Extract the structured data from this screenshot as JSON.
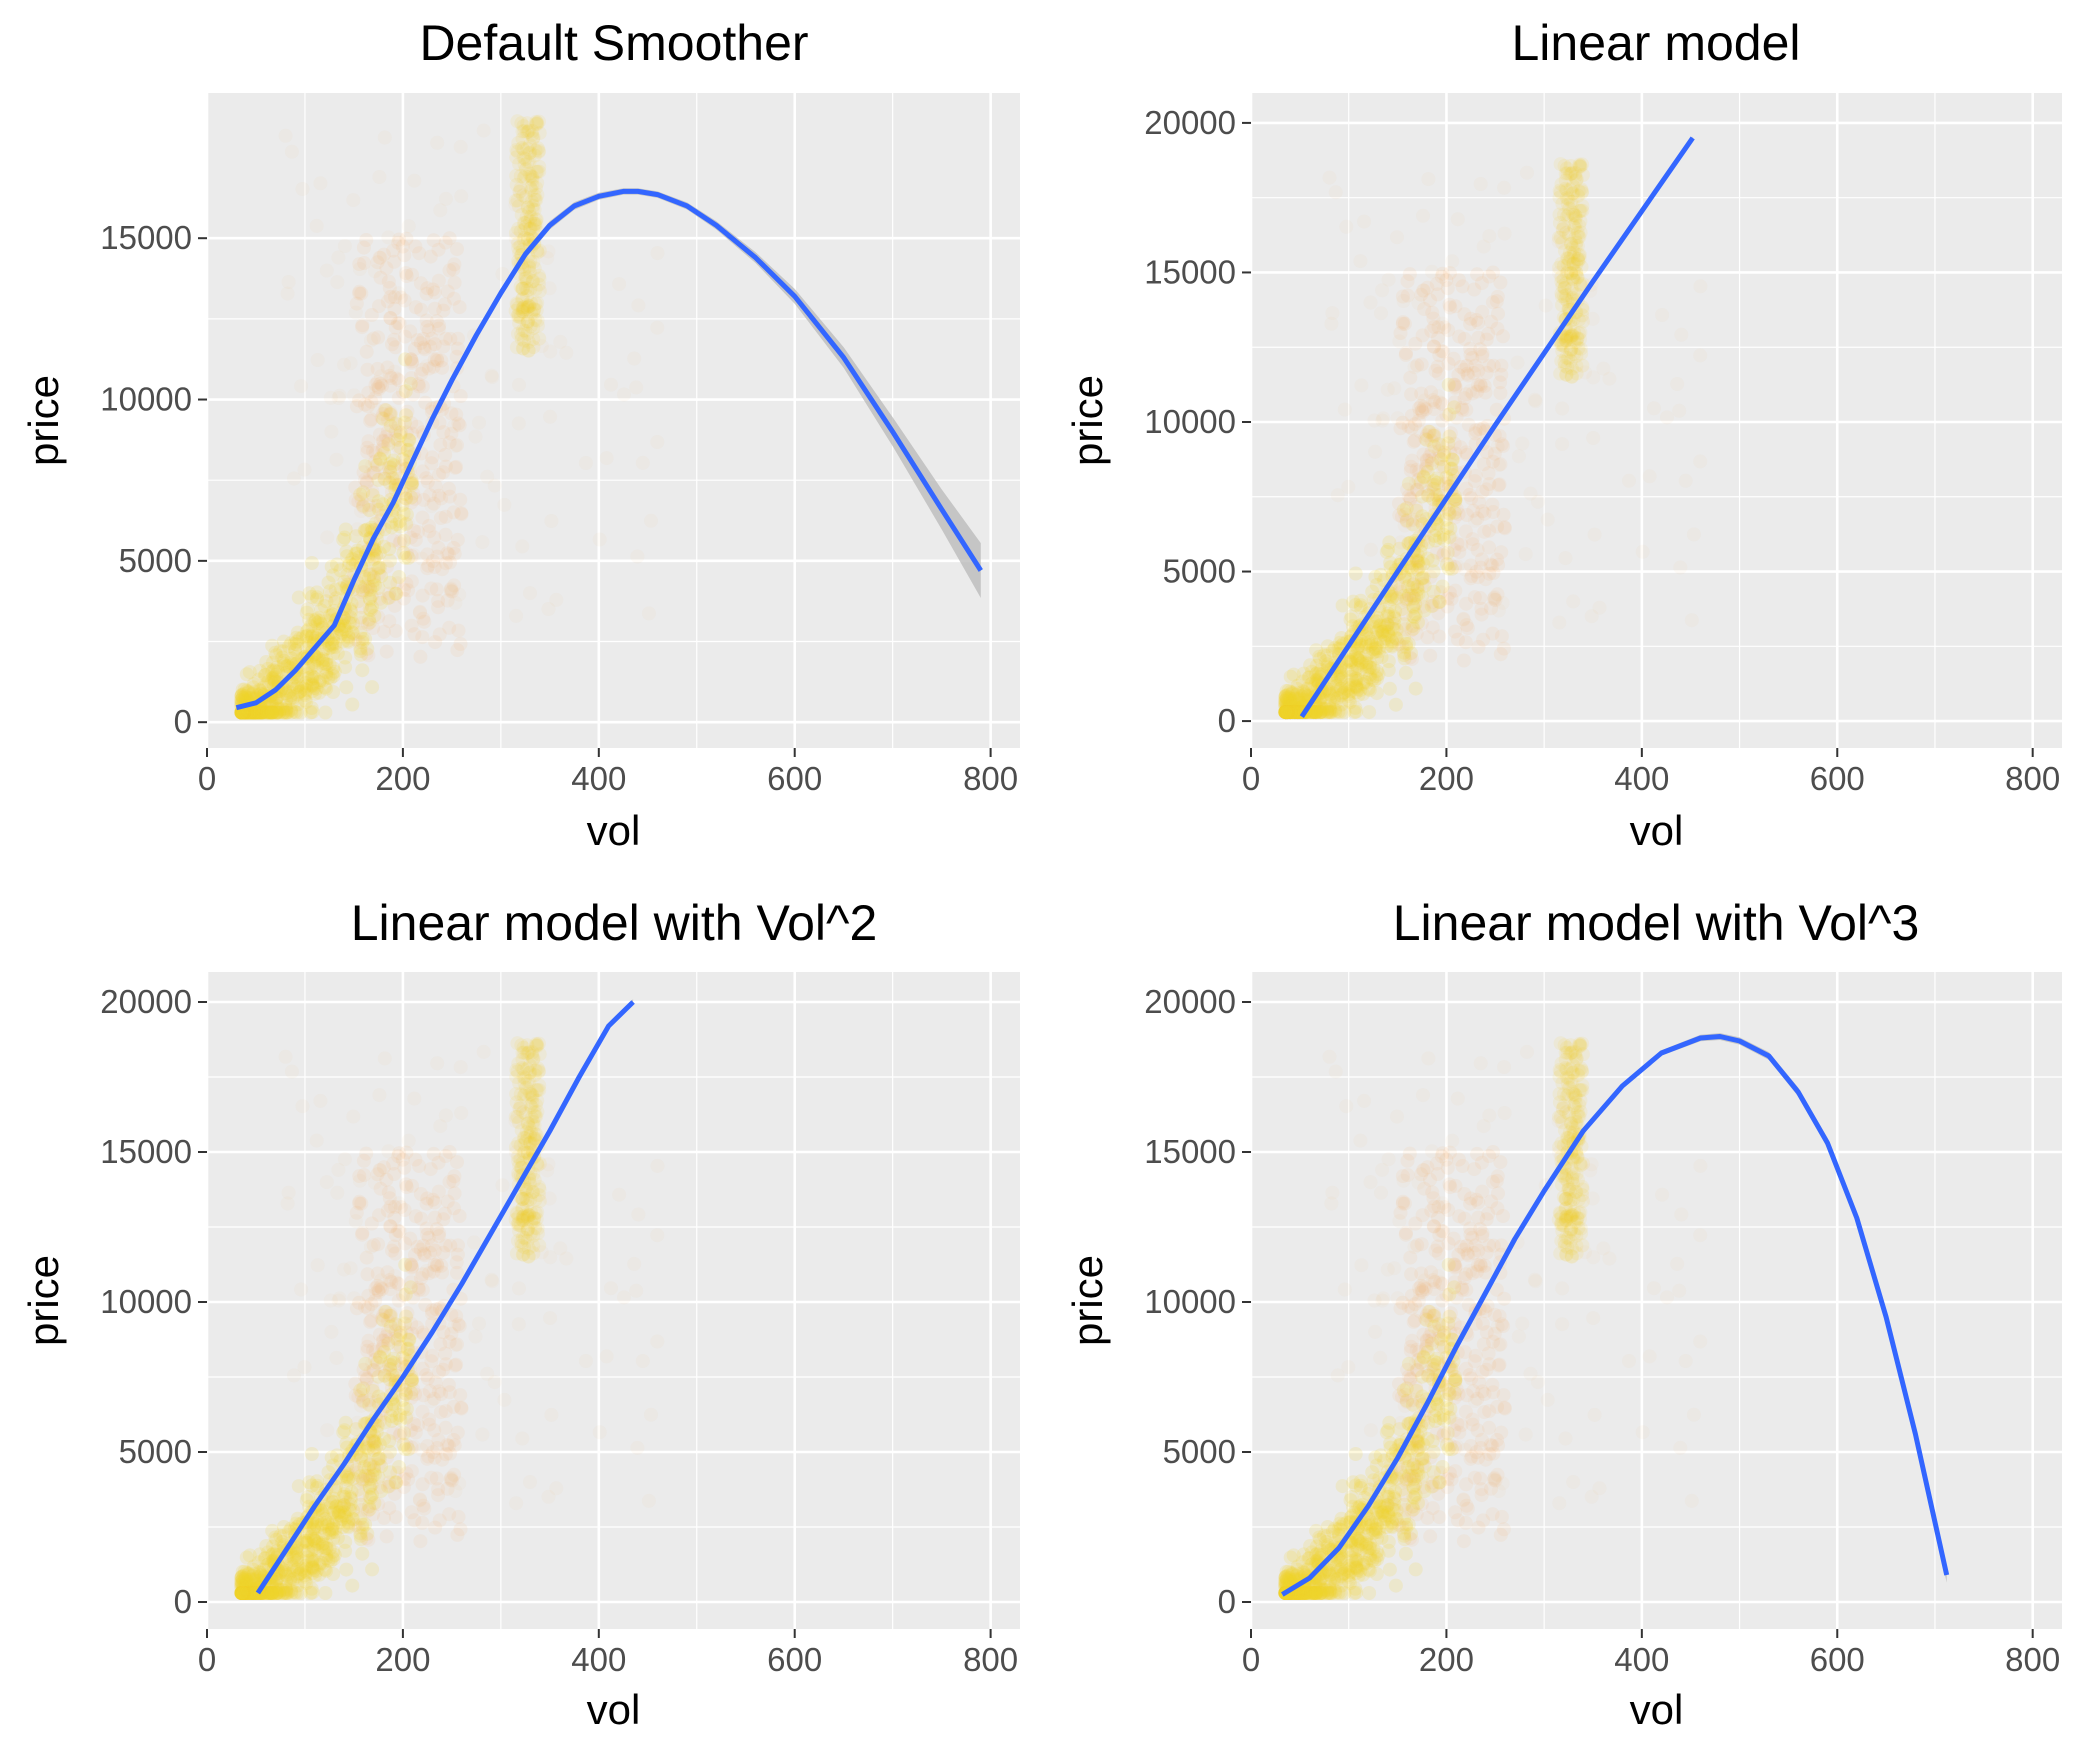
{
  "colors": {
    "panel_bg": "#EBEBEB",
    "grid_major": "#FFFFFF",
    "grid_minor": "#F5F5F5",
    "point_fill": "#F2D12C",
    "point_halo": "#F5B56A",
    "smooth_line": "#3366FF",
    "ribbon": "#B8B8B8",
    "tick_text": "#4D4D4D"
  },
  "chart_data": [
    {
      "type": "scatter",
      "title": "Default Smoother",
      "xlabel": "vol",
      "ylabel": "price",
      "xlim": [
        0,
        830
      ],
      "ylim": [
        -800,
        19500
      ],
      "xticks": [
        0,
        200,
        400,
        600,
        800
      ],
      "yticks": [
        0,
        5000,
        10000,
        15000
      ],
      "grid": true,
      "smooth": {
        "method": "default smoother",
        "x": [
          30,
          50,
          70,
          90,
          110,
          130,
          150,
          170,
          190,
          210,
          230,
          250,
          275,
          300,
          325,
          350,
          375,
          400,
          425,
          440,
          460,
          490,
          520,
          560,
          600,
          650,
          700,
          750,
          790
        ],
        "y": [
          450,
          600,
          1000,
          1600,
          2300,
          3000,
          4400,
          5700,
          6800,
          8100,
          9400,
          10600,
          12000,
          13300,
          14500,
          15400,
          16000,
          16300,
          16450,
          16450,
          16350,
          16000,
          15400,
          14400,
          13200,
          11300,
          9000,
          6600,
          4700
        ],
        "ribbon_halfwidth": [
          60,
          50,
          45,
          45,
          50,
          55,
          60,
          70,
          80,
          90,
          100,
          110,
          120,
          130,
          130,
          130,
          120,
          110,
          100,
          100,
          100,
          110,
          130,
          170,
          230,
          320,
          450,
          620,
          850
        ]
      }
    },
    {
      "type": "scatter",
      "title": "Linear model",
      "xlabel": "vol",
      "ylabel": "price",
      "xlim": [
        0,
        830
      ],
      "ylim": [
        -900,
        21000
      ],
      "xticks": [
        0,
        200,
        400,
        600,
        800
      ],
      "yticks": [
        0,
        5000,
        10000,
        15000,
        20000
      ],
      "grid": true,
      "smooth": {
        "method": "lm",
        "x": [
          52,
          150,
          250,
          350,
          452
        ],
        "y": [
          150,
          5000,
          9900,
          14700,
          19500
        ],
        "ribbon_halfwidth": [
          40,
          30,
          30,
          35,
          45
        ]
      }
    },
    {
      "type": "scatter",
      "title": "Linear model with Vol^2",
      "xlabel": "vol",
      "ylabel": "price",
      "xlim": [
        0,
        830
      ],
      "ylim": [
        -900,
        21000
      ],
      "xticks": [
        0,
        200,
        400,
        600,
        800
      ],
      "yticks": [
        0,
        5000,
        10000,
        15000,
        20000
      ],
      "grid": true,
      "smooth": {
        "method": "lm, poly(vol, 2)",
        "x": [
          52,
          80,
          110,
          140,
          170,
          200,
          230,
          260,
          290,
          320,
          350,
          380,
          410,
          435
        ],
        "y": [
          300,
          1700,
          3200,
          4600,
          6100,
          7500,
          9000,
          10600,
          12300,
          14000,
          15700,
          17500,
          19200,
          20000
        ],
        "ribbon_halfwidth": [
          50,
          40,
          35,
          30,
          30,
          30,
          30,
          35,
          40,
          50,
          60,
          70,
          85,
          95
        ]
      }
    },
    {
      "type": "scatter",
      "title": "Linear model with Vol^3",
      "xlabel": "vol",
      "ylabel": "price",
      "xlim": [
        0,
        830
      ],
      "ylim": [
        -900,
        21000
      ],
      "xticks": [
        0,
        200,
        400,
        600,
        800
      ],
      "yticks": [
        0,
        5000,
        10000,
        15000,
        20000
      ],
      "grid": true,
      "smooth": {
        "method": "lm, poly(vol, 3)",
        "x": [
          32,
          60,
          90,
          120,
          150,
          180,
          210,
          240,
          270,
          300,
          340,
          380,
          420,
          460,
          480,
          500,
          530,
          560,
          590,
          620,
          650,
          680,
          712
        ],
        "y": [
          250,
          800,
          1800,
          3200,
          4800,
          6600,
          8500,
          10300,
          12100,
          13700,
          15700,
          17200,
          18300,
          18800,
          18850,
          18700,
          18200,
          17000,
          15300,
          12800,
          9500,
          5600,
          900
        ],
        "ribbon_halfwidth": [
          70,
          55,
          45,
          40,
          40,
          40,
          45,
          50,
          55,
          60,
          70,
          80,
          95,
          110,
          115,
          120,
          130,
          150,
          170,
          190,
          210,
          230,
          260
        ]
      }
    }
  ]
}
